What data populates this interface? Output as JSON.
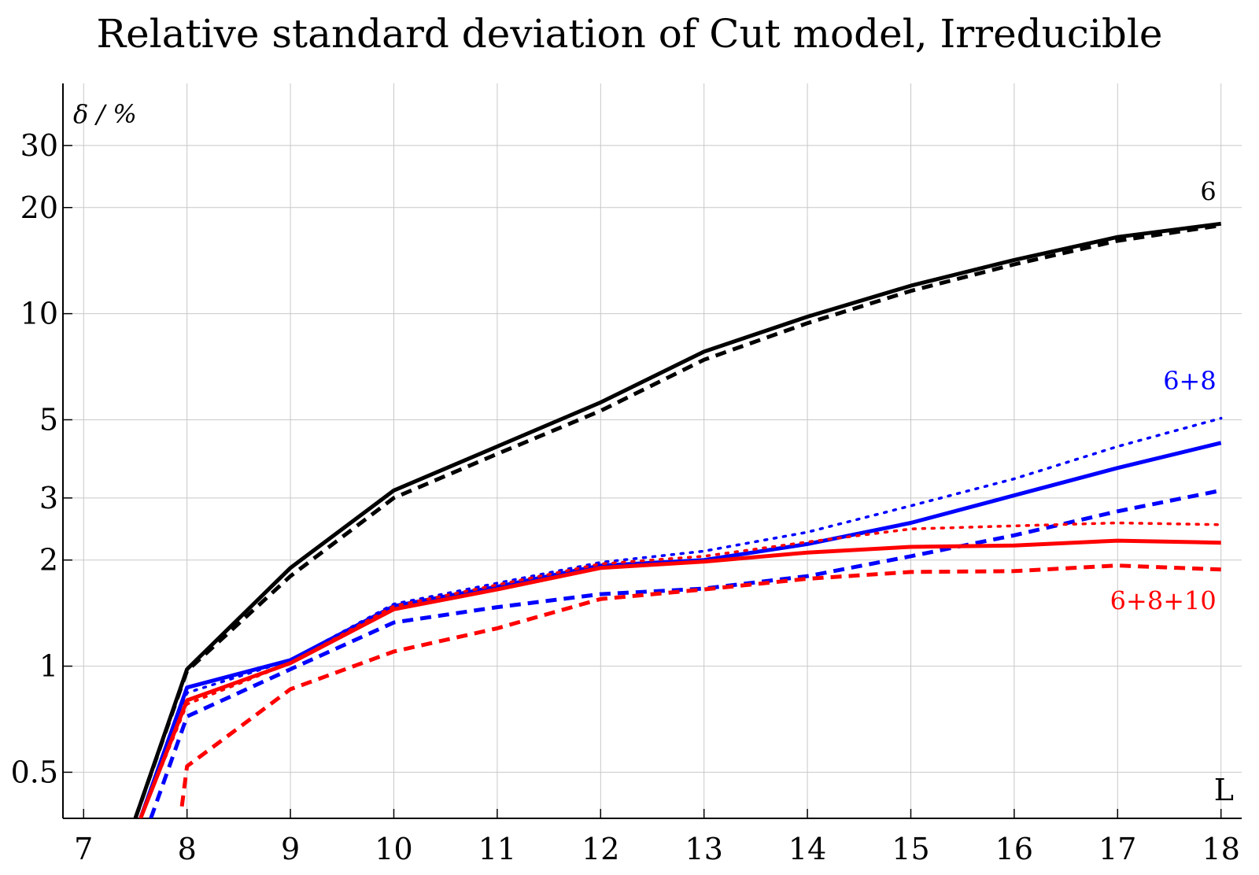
{
  "chart_data": {
    "type": "line",
    "title": "Relative standard deviation of Cut model, Irreducible",
    "xlabel": "L",
    "ylabel": "δ / %",
    "yscale": "log",
    "xlim": [
      6.8,
      18.2
    ],
    "ylim": [
      0.37,
      45
    ],
    "xticks": [
      7,
      8,
      9,
      10,
      11,
      12,
      13,
      14,
      15,
      16,
      17,
      18
    ],
    "yticks": [
      0.5,
      1,
      2,
      3,
      5,
      10,
      20,
      30
    ],
    "ytick_labels": [
      "0.5",
      "1",
      "2",
      "3",
      "5",
      "10",
      "20",
      "30"
    ],
    "grid": true,
    "series_labels": [
      {
        "text": "6",
        "color": "#000000",
        "x": 18,
        "y": 21
      },
      {
        "text": "6+8",
        "color": "#0000ff",
        "x": 18,
        "y": 6.1
      },
      {
        "text": "6+8+10",
        "color": "#ff0000",
        "x": 18,
        "y": 1.45
      }
    ],
    "series": [
      {
        "color": "#000000",
        "style": "solid",
        "x": [
          7.5,
          8,
          9,
          10,
          11,
          12,
          13,
          14,
          15,
          16,
          17,
          18
        ],
        "y": [
          0.37,
          0.98,
          1.9,
          3.15,
          4.2,
          5.6,
          7.8,
          9.8,
          12.0,
          14.2,
          16.5,
          18.0
        ]
      },
      {
        "color": "#000000",
        "style": "dashed",
        "x": [
          7.5,
          8,
          9,
          10,
          11,
          12,
          13,
          14,
          15,
          16,
          17,
          18
        ],
        "y": [
          0.37,
          0.97,
          1.8,
          3.0,
          4.0,
          5.3,
          7.4,
          9.4,
          11.6,
          13.8,
          16.1,
          17.8
        ]
      },
      {
        "color": "#0000ff",
        "style": "solid",
        "x": [
          7.55,
          8,
          9,
          10,
          11,
          12,
          13,
          14,
          15,
          16,
          17,
          18
        ],
        "y": [
          0.37,
          0.87,
          1.04,
          1.48,
          1.68,
          1.93,
          2.0,
          2.22,
          2.55,
          3.05,
          3.65,
          4.3
        ]
      },
      {
        "color": "#0000ff",
        "style": "dotted",
        "x": [
          7.55,
          8,
          9,
          10,
          11,
          12,
          13,
          14,
          15,
          16,
          17,
          18
        ],
        "y": [
          0.37,
          0.84,
          1.04,
          1.5,
          1.72,
          1.97,
          2.12,
          2.4,
          2.85,
          3.4,
          4.2,
          5.05
        ]
      },
      {
        "color": "#0000ff",
        "style": "dashed",
        "x": [
          7.65,
          8,
          9,
          10,
          11,
          12,
          13,
          14,
          15,
          16,
          17,
          18
        ],
        "y": [
          0.37,
          0.72,
          0.98,
          1.33,
          1.47,
          1.6,
          1.66,
          1.8,
          2.05,
          2.35,
          2.75,
          3.15
        ]
      },
      {
        "color": "#ff0000",
        "style": "solid",
        "x": [
          7.55,
          8,
          9,
          10,
          11,
          12,
          13,
          14,
          15,
          16,
          17,
          18
        ],
        "y": [
          0.37,
          0.8,
          1.02,
          1.45,
          1.65,
          1.9,
          1.98,
          2.1,
          2.18,
          2.2,
          2.27,
          2.24
        ]
      },
      {
        "color": "#ff0000",
        "style": "dotted",
        "x": [
          7.55,
          8,
          9,
          10,
          11,
          12,
          13,
          14,
          15,
          16,
          17,
          18
        ],
        "y": [
          0.37,
          0.78,
          1.02,
          1.48,
          1.7,
          1.95,
          2.05,
          2.25,
          2.45,
          2.5,
          2.55,
          2.52
        ]
      },
      {
        "color": "#ff0000",
        "style": "dashed",
        "x": [
          7.95,
          8,
          9,
          10,
          11,
          12,
          13,
          14,
          15,
          16,
          17,
          18
        ],
        "y": [
          0.4,
          0.52,
          0.86,
          1.1,
          1.28,
          1.55,
          1.65,
          1.77,
          1.85,
          1.86,
          1.93,
          1.88
        ]
      }
    ]
  }
}
